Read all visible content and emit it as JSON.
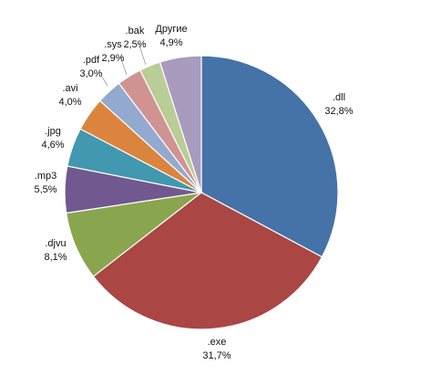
{
  "chart_data": {
    "type": "pie",
    "title": "",
    "legend": "none",
    "start_angle_deg": 0,
    "direction": "clockwise",
    "slices": [
      {
        "label": ".dll",
        "value": 32.8,
        "display": "32,8%",
        "color": "#4572A7"
      },
      {
        "label": ".exe",
        "value": 31.7,
        "display": "31,7%",
        "color": "#AA4643"
      },
      {
        "label": ".djvu",
        "value": 8.1,
        "display": "8,1%",
        "color": "#89A54E"
      },
      {
        "label": ".mp3",
        "value": 5.5,
        "display": "5,5%",
        "color": "#71588F"
      },
      {
        "label": ".jpg",
        "value": 4.6,
        "display": "4,6%",
        "color": "#4198AF"
      },
      {
        "label": ".avi",
        "value": 4.0,
        "display": "4,0%",
        "color": "#DB843D"
      },
      {
        "label": ".pdf",
        "value": 3.0,
        "display": "3,0%",
        "color": "#93A9CF"
      },
      {
        "label": ".sys",
        "value": 2.9,
        "display": "2,9%",
        "color": "#D19392"
      },
      {
        "label": ".bak",
        "value": 2.5,
        "display": "2,5%",
        "color": "#B9CD96"
      },
      {
        "label": "Другие",
        "value": 4.9,
        "display": "4,9%",
        "color": "#A99BBD"
      }
    ]
  }
}
